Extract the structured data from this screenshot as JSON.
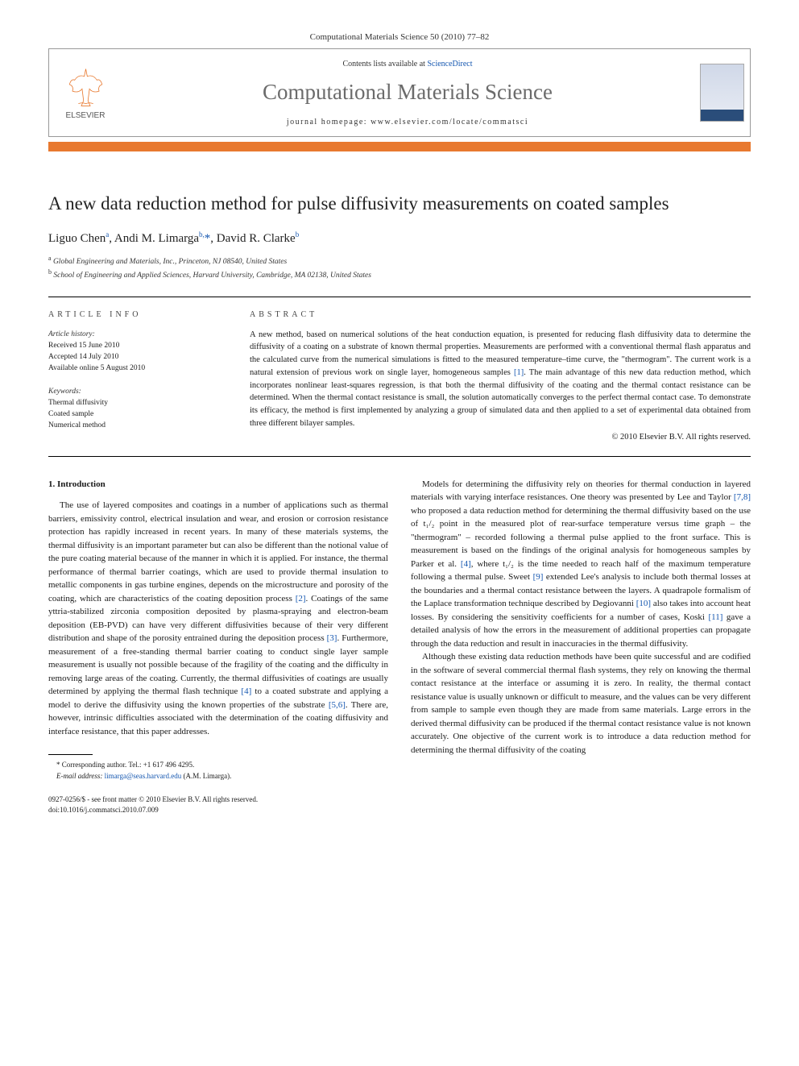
{
  "journal_ref": "Computational Materials Science 50 (2010) 77–82",
  "banner": {
    "contents_prefix": "Contents lists available at ",
    "contents_link": "ScienceDirect",
    "journal_name": "Computational Materials Science",
    "homepage_prefix": "journal homepage: ",
    "homepage_url": "www.elsevier.com/locate/commatsci",
    "publisher_label": "ELSEVIER"
  },
  "article": {
    "title": "A new data reduction method for pulse diffusivity measurements on coated samples",
    "authors_html": "Liguo Chen<sup>a</sup>, Andi M. Limarga<sup>b,</sup><span class=\"star\">*</span>, David R. Clarke<sup>b</sup>",
    "affiliations": [
      {
        "sup": "a",
        "text": "Global Engineering and Materials, Inc., Princeton, NJ 08540, United States"
      },
      {
        "sup": "b",
        "text": "School of Engineering and Applied Sciences, Harvard University, Cambridge, MA 02138, United States"
      }
    ]
  },
  "info": {
    "label": "ARTICLE INFO",
    "history_label": "Article history:",
    "history": [
      "Received 15 June 2010",
      "Accepted 14 July 2010",
      "Available online 5 August 2010"
    ],
    "keywords_label": "Keywords:",
    "keywords": [
      "Thermal diffusivity",
      "Coated sample",
      "Numerical method"
    ]
  },
  "abstract": {
    "label": "ABSTRACT",
    "text": "A new method, based on numerical solutions of the heat conduction equation, is presented for reducing flash diffusivity data to determine the diffusivity of a coating on a substrate of known thermal properties. Measurements are performed with a conventional thermal flash apparatus and the calculated curve from the numerical simulations is fitted to the measured temperature–time curve, the \"thermogram\". The current work is a natural extension of previous work on single layer, homogeneous samples [1]. The main advantage of this new data reduction method, which incorporates nonlinear least-squares regression, is that both the thermal diffusivity of the coating and the thermal contact resistance can be determined. When the thermal contact resistance is small, the solution automatically converges to the perfect thermal contact case. To demonstrate its efficacy, the method is first implemented by analyzing a group of simulated data and then applied to a set of experimental data obtained from three different bilayer samples.",
    "copyright": "© 2010 Elsevier B.V. All rights reserved."
  },
  "body": {
    "heading": "1. Introduction",
    "col1_p1": "The use of layered composites and coatings in a number of applications such as thermal barriers, emissivity control, electrical insulation and wear, and erosion or corrosion resistance protection has rapidly increased in recent years. In many of these materials systems, the thermal diffusivity is an important parameter but can also be different than the notional value of the pure coating material because of the manner in which it is applied. For instance, the thermal performance of thermal barrier coatings, which are used to provide thermal insulation to metallic components in gas turbine engines, depends on the microstructure and porosity of the coating, which are characteristics of the coating deposition process [2]. Coatings of the same yttria-stabilized zirconia composition deposited by plasma-spraying and electron-beam deposition (EB-PVD) can have very different diffusivities because of their very different distribution and shape of the porosity entrained during the deposition process [3]. Furthermore, measurement of a free-standing thermal barrier coating to conduct single layer sample measurement is usually not possible because of the fragility of the coating and the difficulty in removing large areas of the coating. Currently, the thermal diffusivities of coatings are usually determined by applying the thermal flash technique [4] to a coated substrate and applying a model to derive the diffusivity using the known properties of the substrate [5,6]. There are, however, intrinsic difficulties associated with the determination of the coating diffusivity and interface resistance, that this paper addresses.",
    "col2_p1": "Models for determining the diffusivity rely on theories for thermal conduction in layered materials with varying interface resistances. One theory was presented by Lee and Taylor [7,8] who proposed a data reduction method for determining the thermal diffusivity based on the use of t₁/₂ point in the measured plot of rear-surface temperature versus time graph – the \"thermogram\" – recorded following a thermal pulse applied to the front surface. This is measurement is based on the findings of the original analysis for homogeneous samples by Parker et al. [4], where t₁/₂ is the time needed to reach half of the maximum temperature following a thermal pulse. Sweet [9] extended Lee's analysis to include both thermal losses at the boundaries and a thermal contact resistance between the layers. A quadrapole formalism of the Laplace transformation technique described by Degiovanni [10] also takes into account heat losses. By considering the sensitivity coefficients for a number of cases, Koski [11] gave a detailed analysis of how the errors in the measurement of additional properties can propagate through the data reduction and result in inaccuracies in the thermal diffusivity.",
    "col2_p2": "Although these existing data reduction methods have been quite successful and are codified in the software of several commercial thermal flash systems, they rely on knowing the thermal contact resistance at the interface or assuming it is zero. In reality, the thermal contact resistance value is usually unknown or difficult to measure, and the values can be very different from sample to sample even though they are made from same materials. Large errors in the derived thermal diffusivity can be produced if the thermal contact resistance value is not known accurately. One objective of the current work is to introduce a data reduction method for determining the thermal diffusivity of the coating"
  },
  "footnote": {
    "corresponding": "* Corresponding author. Tel.: +1 617 496 4295.",
    "email_label": "E-mail address:",
    "email": "limarga@seas.harvard.edu",
    "email_suffix": "(A.M. Limarga)."
  },
  "footer": {
    "issn_line": "0927-0256/$ - see front matter © 2010 Elsevier B.V. All rights reserved.",
    "doi_line": "doi:10.1016/j.commatsci.2010.07.009"
  },
  "colors": {
    "link": "#1557b0",
    "orange_bar": "#e8792f",
    "journal_gray": "#6b6b6b"
  }
}
